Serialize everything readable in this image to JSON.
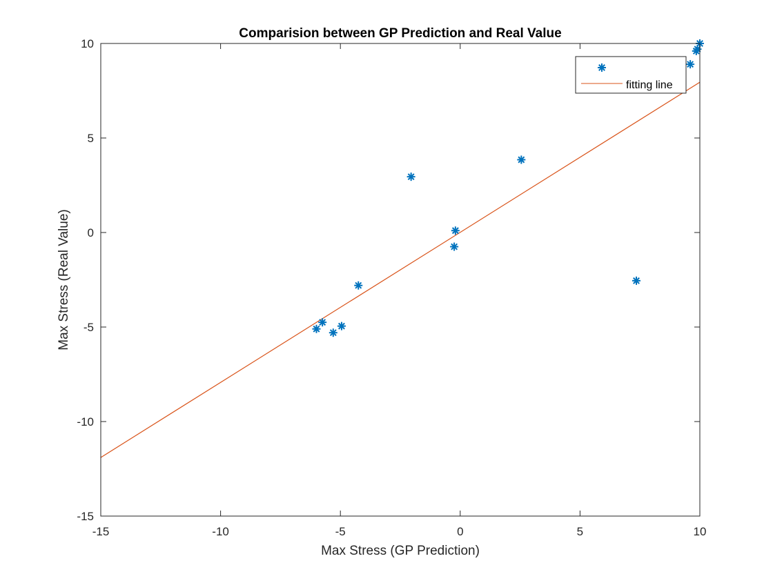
{
  "chart_data": {
    "type": "scatter",
    "title": "Comparision between GP Prediction and Real Value",
    "xlabel": "Max Stress (GP Prediction)",
    "ylabel": "Max Stress (Real Value)",
    "xlim": [
      -15,
      10
    ],
    "ylim": [
      -15,
      10
    ],
    "xticks": [
      -15,
      -10,
      -5,
      0,
      5,
      10
    ],
    "yticks": [
      -15,
      -10,
      -5,
      0,
      5,
      10
    ],
    "xtick_labels": [
      "-15",
      "-10",
      "-5",
      "0",
      "5",
      "10"
    ],
    "ytick_labels": [
      "-15",
      "-10",
      "-5",
      "0",
      "5",
      "10"
    ],
    "grid": false,
    "legend_position": "top-right",
    "series": [
      {
        "name": "",
        "type": "scatter",
        "marker": "asterisk",
        "color": "#0072BD",
        "x": [
          -6.0,
          -5.75,
          -5.3,
          -4.95,
          -4.25,
          -2.05,
          -0.25,
          -0.2,
          2.55,
          7.35,
          9.6,
          9.85,
          9.9,
          10.0
        ],
        "y": [
          -5.1,
          -4.75,
          -5.3,
          -4.95,
          -2.8,
          2.95,
          -0.75,
          0.1,
          3.85,
          -2.55,
          8.9,
          9.6,
          9.7,
          10.0
        ]
      },
      {
        "name": "fitting line",
        "type": "line",
        "color": "#D95319",
        "x": [
          -15,
          10
        ],
        "y": [
          -11.9,
          7.95
        ]
      }
    ]
  }
}
